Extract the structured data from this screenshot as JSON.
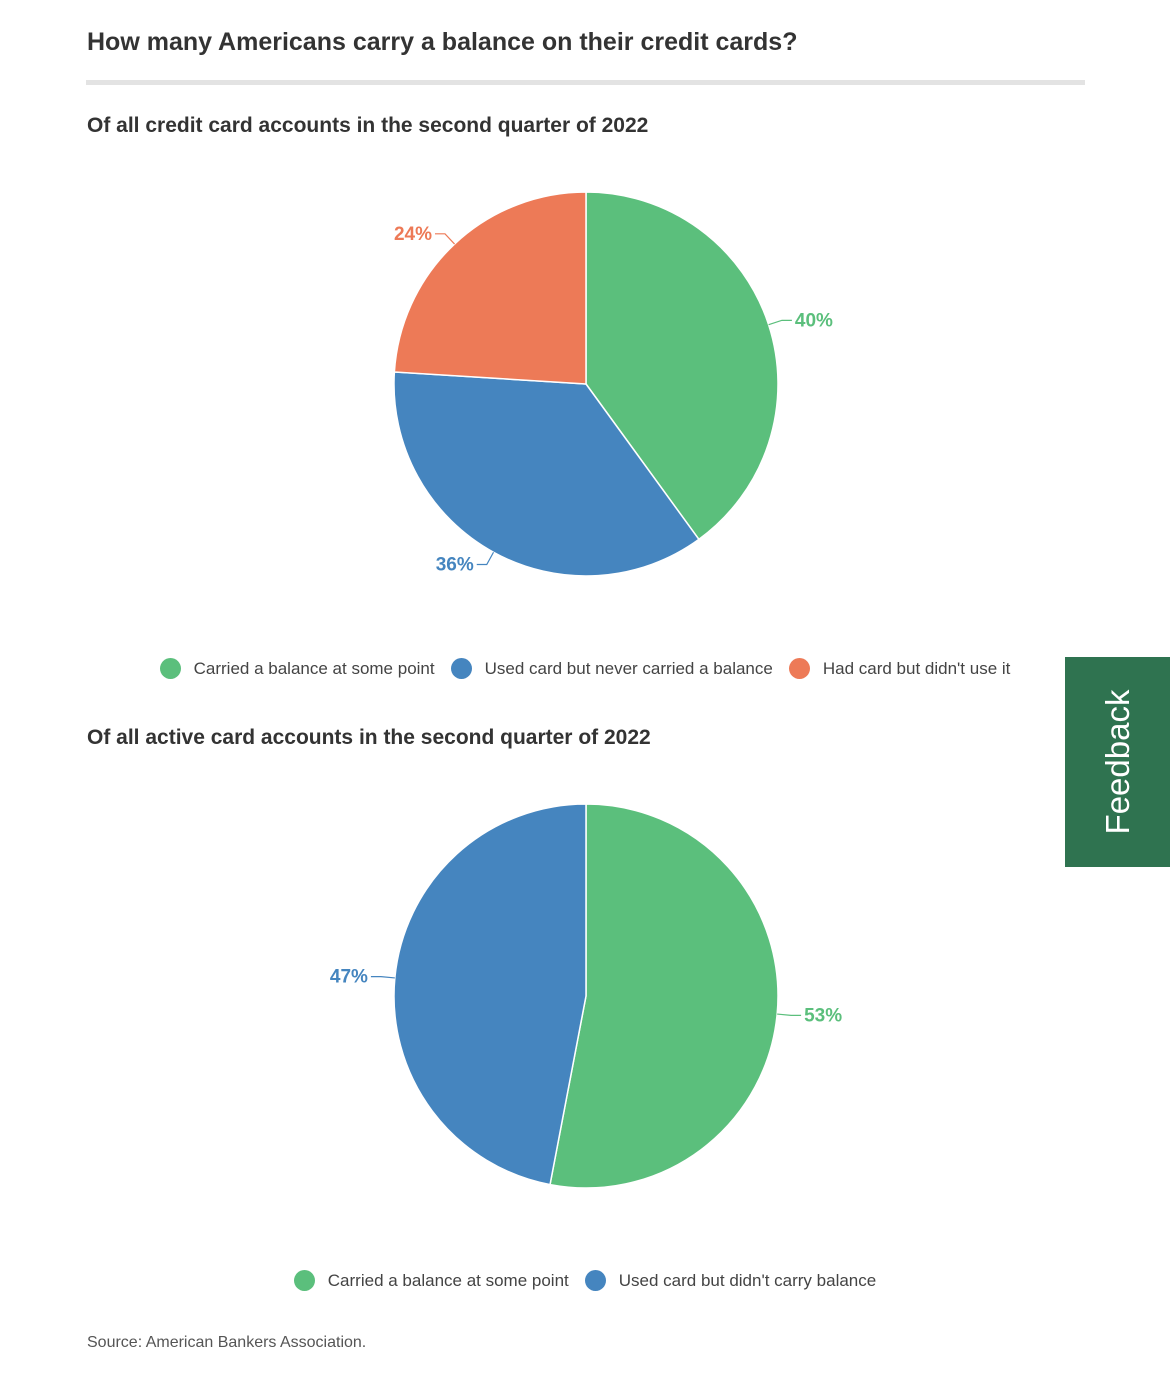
{
  "title": "How many Americans carry a balance on their credit cards?",
  "source": "Source: American Bankers Association.",
  "feedback_label": "Feedback",
  "chart_data": [
    {
      "type": "pie",
      "title": "Of all credit card accounts in the second quarter of 2022",
      "slices": [
        {
          "label": "Carried a balance at some point",
          "value": 40,
          "display": "40%",
          "color": "#5bbf7c"
        },
        {
          "label": "Used card but never carried a balance",
          "value": 36,
          "display": "36%",
          "color": "#4585bf"
        },
        {
          "label": "Had card but didn't use it",
          "value": 24,
          "display": "24%",
          "color": "#ed7a57"
        }
      ],
      "legend": "bottom-center"
    },
    {
      "type": "pie",
      "title": "Of all active card accounts in the second quarter of 2022",
      "slices": [
        {
          "label": "Carried a balance at some point",
          "value": 53,
          "display": "53%",
          "color": "#5bbf7c"
        },
        {
          "label": "Used card but didn't carry balance",
          "value": 47,
          "display": "47%",
          "color": "#4585bf"
        }
      ],
      "legend": "bottom-center"
    }
  ]
}
